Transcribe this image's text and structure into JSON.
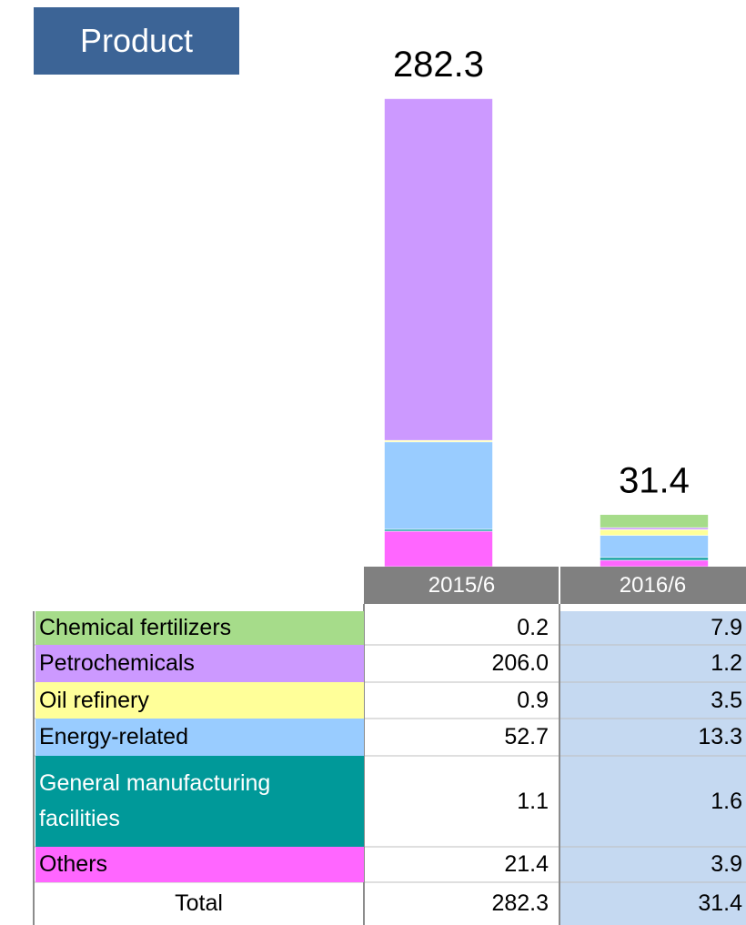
{
  "chart_data": {
    "type": "bar",
    "stacked": true,
    "title": "Product",
    "categories": [
      "2015/6",
      "2016/6"
    ],
    "series": [
      {
        "name": "Chemical fertilizers",
        "color": "#a6dc8a",
        "values": [
          0.2,
          7.9
        ],
        "value_labels": [
          "0.2",
          "7.9"
        ]
      },
      {
        "name": "Petrochemicals",
        "color": "#cc99ff",
        "values": [
          206.0,
          1.2
        ],
        "value_labels": [
          "206.0",
          "1.2"
        ]
      },
      {
        "name": "Oil refinery",
        "color": "#ffff99",
        "values": [
          0.9,
          3.5
        ],
        "value_labels": [
          "0.9",
          "3.5"
        ]
      },
      {
        "name": "Energy-related",
        "color": "#99ccff",
        "values": [
          52.7,
          13.3
        ],
        "value_labels": [
          "52.7",
          "13.3"
        ]
      },
      {
        "name": "General manufacturing facilities",
        "color": "#009999",
        "text_color": "#ffffff",
        "values": [
          1.1,
          1.6
        ],
        "value_labels": [
          "1.1",
          "1.6"
        ]
      },
      {
        "name": "Others",
        "color": "#ff66ff",
        "values": [
          21.4,
          3.9
        ],
        "value_labels": [
          "21.4",
          "3.9"
        ]
      }
    ],
    "total_label": "Total",
    "totals": [
      282.3,
      31.4
    ]
  }
}
